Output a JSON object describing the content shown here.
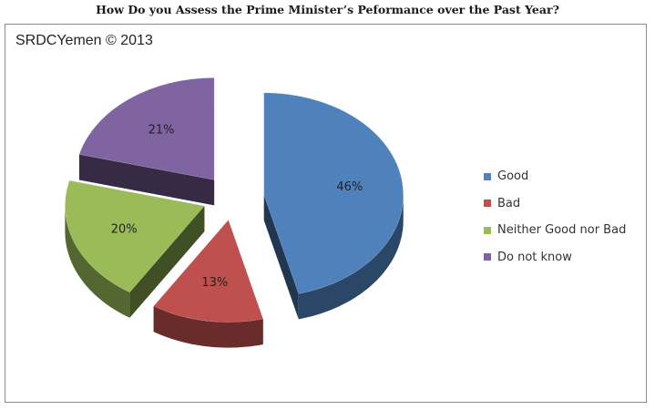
{
  "title": "How Do you Assess the Prime Minister’s Peformance over the Past Year?",
  "watermark": "SRDCYemen © 2013",
  "chart_data": {
    "type": "pie",
    "title": "How Do you Assess the Prime Minister’s Peformance over the Past Year?",
    "categories": [
      "Good",
      "Bad",
      "Neither Good nor Bad",
      "Do not know"
    ],
    "values": [
      46,
      13,
      20,
      21
    ],
    "labels": [
      "46%",
      "13%",
      "20%",
      "21%"
    ],
    "colors": [
      "#4f81bd",
      "#c0504d",
      "#9bbb59",
      "#8064a2"
    ],
    "exploded": true,
    "three_d": true,
    "legend_position": "right"
  }
}
